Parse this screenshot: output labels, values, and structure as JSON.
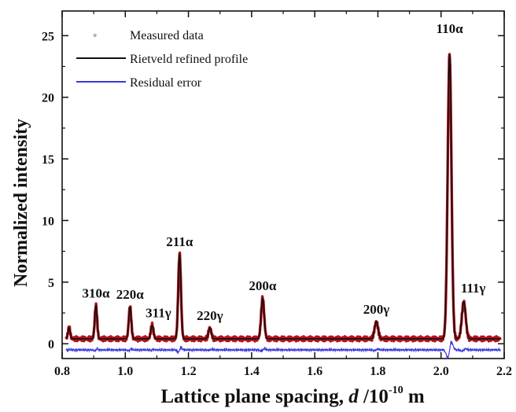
{
  "chart_data": {
    "type": "line",
    "title": "",
    "xlabel": "Lattice plane spacing, d /10⁻¹⁰ m",
    "xlabel_parts": {
      "main": "Lattice plane spacing, ",
      "var": "d",
      "unit_pre": " /10",
      "exp": "-10",
      "unit_post": " m"
    },
    "ylabel": "Normalized intensity",
    "xlim": [
      0.8,
      2.2
    ],
    "ylim": [
      -1.2,
      27
    ],
    "xticks": [
      0.8,
      1.0,
      1.2,
      1.4,
      1.6,
      1.8,
      2.0,
      2.2
    ],
    "xtick_labels": [
      "0.8",
      "1.0",
      "1.2",
      "1.4",
      "1.6",
      "1.8",
      "2.0",
      "2.2"
    ],
    "yticks": [
      0,
      5,
      10,
      15,
      20,
      25
    ],
    "ytick_labels": [
      "0",
      "5",
      "10",
      "15",
      "20",
      "25"
    ],
    "legend": {
      "position": "top-left",
      "entries": [
        {
          "label": "Measured data",
          "marker": "*",
          "color": "#888888"
        },
        {
          "label": "Rietveld refined profile",
          "color": "#111111"
        },
        {
          "label": "Residual error",
          "color": "#3a3ae0"
        }
      ]
    },
    "colors": {
      "measured": "#b3121d",
      "profile": "#111111",
      "residual": "#3a3ae0"
    },
    "baseline": 0.4,
    "residual_offset": -0.5,
    "peaks": [
      {
        "label": "310α",
        "d": 0.907,
        "height": 3.1
      },
      {
        "label": "220α",
        "d": 1.015,
        "height": 3.0
      },
      {
        "label": "311γ",
        "d": 1.085,
        "height": 1.5
      },
      {
        "label": "211α",
        "d": 1.172,
        "height": 7.3
      },
      {
        "label": "220γ",
        "d": 1.268,
        "height": 1.3
      },
      {
        "label": "200α",
        "d": 1.435,
        "height": 3.7
      },
      {
        "label": "200γ",
        "d": 1.795,
        "height": 1.8
      },
      {
        "label": "110α",
        "d": 2.027,
        "height": 23.5
      },
      {
        "label": "111γ",
        "d": 2.072,
        "height": 3.4
      }
    ],
    "unlabeled_peaks": [
      {
        "d": 0.822,
        "height": 1.3
      }
    ]
  }
}
